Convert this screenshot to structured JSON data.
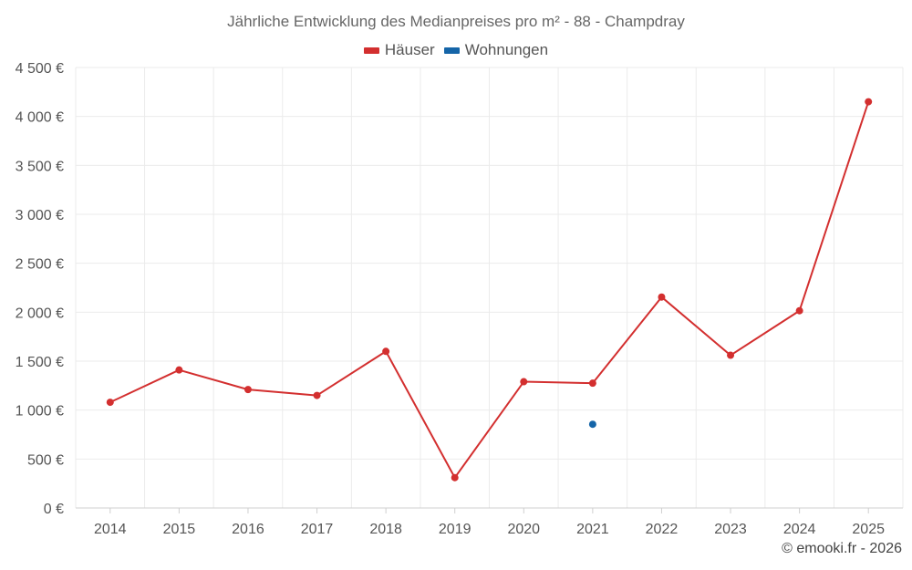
{
  "chart_data": {
    "type": "line",
    "title": "Jährliche Entwicklung des Medianpreises pro m² - 88 - Champdray",
    "categories": [
      "2014",
      "2015",
      "2016",
      "2017",
      "2018",
      "2019",
      "2020",
      "2021",
      "2022",
      "2023",
      "2024",
      "2025"
    ],
    "series": [
      {
        "name": "Häuser",
        "color": "#d32f2f",
        "values": [
          1080,
          1410,
          1210,
          1150,
          1600,
          310,
          1290,
          1275,
          2155,
          1560,
          2015,
          4150
        ]
      },
      {
        "name": "Wohnungen",
        "color": "#1565a8",
        "values": [
          null,
          null,
          null,
          null,
          null,
          null,
          null,
          855,
          null,
          null,
          null,
          null
        ]
      }
    ],
    "ylim": [
      0,
      4500
    ],
    "yticks": [
      0,
      500,
      1000,
      1500,
      2000,
      2500,
      3000,
      3500,
      4000,
      4500
    ],
    "ytick_labels": [
      "0 €",
      "500 €",
      "1 000 €",
      "1 500 €",
      "2 000 €",
      "2 500 €",
      "3 000 €",
      "3 500 €",
      "4 000 €",
      "4 500 €"
    ],
    "grid": true,
    "legend_position": "top-center"
  },
  "credit": "© emooki.fr - 2026"
}
